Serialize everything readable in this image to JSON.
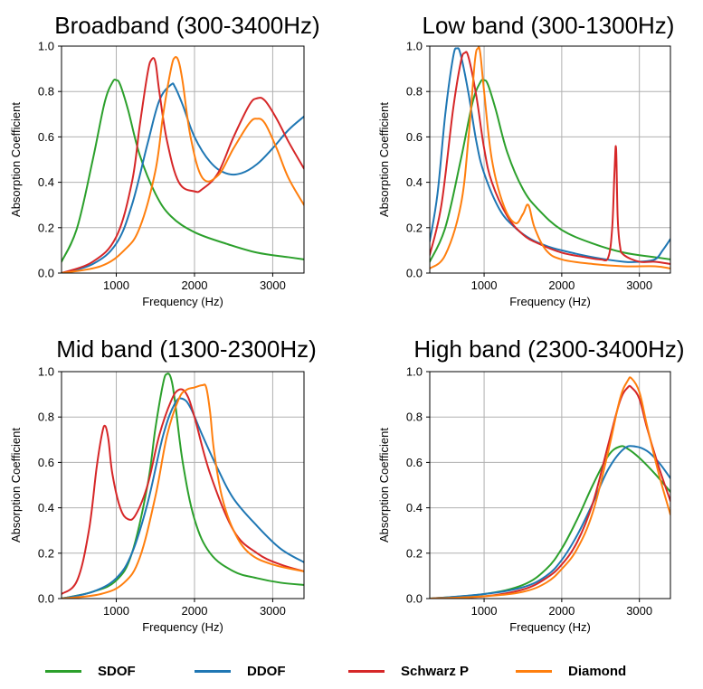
{
  "colors": {
    "SDOF": "#2ca02c",
    "DDOF": "#1f77b4",
    "Schwarz P": "#d62728",
    "Diamond": "#ff7f0e"
  },
  "legend": {
    "entries": [
      {
        "label": "SDOF",
        "color": "#2ca02c"
      },
      {
        "label": "DDOF",
        "color": "#1f77b4"
      },
      {
        "label": "Schwarz P",
        "color": "#d62728"
      },
      {
        "label": "Diamond",
        "color": "#ff7f0e"
      }
    ],
    "placement": "bottom"
  },
  "chart_data": [
    {
      "type": "line",
      "title": "Broadband (300-3400Hz)",
      "xlabel": "Frequency (Hz)",
      "ylabel": "Absorption Coefficient",
      "xlim": [
        300,
        3400
      ],
      "ylim": [
        0,
        1.0
      ],
      "xticks": [
        1000,
        2000,
        3000
      ],
      "xtick_labels": [
        "1000",
        "2000",
        "3000"
      ],
      "yticks": [
        0,
        0.2,
        0.4,
        0.6,
        0.8,
        1.0
      ],
      "ytick_labels": [
        "0.0",
        "0.2",
        "0.4",
        "0.6",
        "0.8",
        "1.0"
      ],
      "grid": true,
      "series": [
        {
          "name": "SDOF",
          "x": [
            300,
            500,
            700,
            850,
            950,
            1000,
            1050,
            1150,
            1300,
            1500,
            1700,
            2000,
            2400,
            2800,
            3200,
            3400
          ],
          "y": [
            0.05,
            0.2,
            0.5,
            0.75,
            0.84,
            0.85,
            0.83,
            0.72,
            0.52,
            0.35,
            0.25,
            0.18,
            0.13,
            0.09,
            0.07,
            0.06
          ]
        },
        {
          "name": "DDOF",
          "x": [
            300,
            700,
            1000,
            1200,
            1400,
            1550,
            1700,
            1750,
            1850,
            2000,
            2200,
            2400,
            2600,
            2800,
            3000,
            3200,
            3400
          ],
          "y": [
            0.0,
            0.04,
            0.13,
            0.3,
            0.57,
            0.76,
            0.83,
            0.82,
            0.74,
            0.6,
            0.49,
            0.44,
            0.44,
            0.48,
            0.55,
            0.63,
            0.69
          ]
        },
        {
          "name": "Schwarz P",
          "x": [
            300,
            700,
            1000,
            1200,
            1300,
            1400,
            1450,
            1500,
            1550,
            1650,
            1800,
            2000,
            2100,
            2300,
            2500,
            2700,
            2800,
            2900,
            3050,
            3200,
            3400
          ],
          "y": [
            0.0,
            0.05,
            0.16,
            0.4,
            0.65,
            0.88,
            0.94,
            0.93,
            0.8,
            0.58,
            0.4,
            0.36,
            0.37,
            0.44,
            0.6,
            0.74,
            0.77,
            0.76,
            0.68,
            0.58,
            0.46
          ]
        },
        {
          "name": "Diamond",
          "x": [
            300,
            800,
            1100,
            1300,
            1500,
            1600,
            1700,
            1750,
            1800,
            1850,
            1950,
            2100,
            2300,
            2500,
            2700,
            2800,
            2900,
            3050,
            3200,
            3400
          ],
          "y": [
            0.0,
            0.03,
            0.1,
            0.2,
            0.45,
            0.7,
            0.9,
            0.95,
            0.93,
            0.84,
            0.6,
            0.42,
            0.43,
            0.55,
            0.66,
            0.68,
            0.66,
            0.55,
            0.42,
            0.3
          ]
        }
      ]
    },
    {
      "type": "line",
      "title": "Low band (300-1300Hz)",
      "xlabel": "Frequency (Hz)",
      "ylabel": "Absorption Coefficient",
      "xlim": [
        300,
        3400
      ],
      "ylim": [
        0,
        1.0
      ],
      "xticks": [
        1000,
        2000,
        3000
      ],
      "xtick_labels": [
        "1000",
        "2000",
        "3000"
      ],
      "yticks": [
        0,
        0.2,
        0.4,
        0.6,
        0.8,
        1.0
      ],
      "ytick_labels": [
        "0.0",
        "0.2",
        "0.4",
        "0.6",
        "0.8",
        "1.0"
      ],
      "grid": true,
      "series": [
        {
          "name": "SDOF",
          "x": [
            300,
            500,
            700,
            850,
            950,
            1000,
            1050,
            1150,
            1300,
            1500,
            1700,
            2000,
            2400,
            2800,
            3200,
            3400
          ],
          "y": [
            0.05,
            0.2,
            0.5,
            0.75,
            0.84,
            0.85,
            0.83,
            0.72,
            0.53,
            0.37,
            0.28,
            0.19,
            0.13,
            0.09,
            0.07,
            0.06
          ]
        },
        {
          "name": "DDOF",
          "x": [
            300,
            400,
            500,
            600,
            650,
            700,
            800,
            900,
            1000,
            1200,
            1400,
            1600,
            1800,
            2000,
            2400,
            2800,
            3000,
            3200,
            3300,
            3400
          ],
          "y": [
            0.14,
            0.35,
            0.7,
            0.95,
            0.99,
            0.96,
            0.79,
            0.58,
            0.44,
            0.28,
            0.2,
            0.15,
            0.12,
            0.1,
            0.07,
            0.05,
            0.05,
            0.06,
            0.1,
            0.15
          ]
        },
        {
          "name": "Schwarz P",
          "x": [
            300,
            450,
            600,
            700,
            750,
            800,
            900,
            1000,
            1100,
            1300,
            1500,
            1700,
            2000,
            2300,
            2500,
            2600,
            2650,
            2680,
            2700,
            2720,
            2750,
            2800,
            3000,
            3200,
            3400
          ],
          "y": [
            0.08,
            0.3,
            0.72,
            0.93,
            0.97,
            0.95,
            0.78,
            0.55,
            0.4,
            0.25,
            0.17,
            0.13,
            0.09,
            0.07,
            0.06,
            0.07,
            0.2,
            0.45,
            0.55,
            0.25,
            0.12,
            0.08,
            0.05,
            0.05,
            0.04
          ]
        },
        {
          "name": "Diamond",
          "x": [
            300,
            500,
            700,
            800,
            880,
            920,
            950,
            1000,
            1100,
            1250,
            1400,
            1500,
            1570,
            1650,
            1800,
            2000,
            2400,
            2800,
            3200,
            3400
          ],
          "y": [
            0.02,
            0.08,
            0.3,
            0.6,
            0.93,
            0.99,
            0.97,
            0.8,
            0.5,
            0.3,
            0.22,
            0.26,
            0.3,
            0.2,
            0.1,
            0.06,
            0.04,
            0.03,
            0.03,
            0.02
          ]
        }
      ]
    },
    {
      "type": "line",
      "title": "Mid band (1300-2300Hz)",
      "xlabel": "Frequency (Hz)",
      "ylabel": "Absorption Coefficient",
      "xlim": [
        300,
        3400
      ],
      "ylim": [
        0,
        1.0
      ],
      "xticks": [
        1000,
        2000,
        3000
      ],
      "xtick_labels": [
        "1000",
        "2000",
        "3000"
      ],
      "yticks": [
        0,
        0.2,
        0.4,
        0.6,
        0.8,
        1.0
      ],
      "ytick_labels": [
        "0.0",
        "0.2",
        "0.4",
        "0.6",
        "0.8",
        "1.0"
      ],
      "grid": true,
      "series": [
        {
          "name": "SDOF",
          "x": [
            300,
            700,
            1000,
            1200,
            1400,
            1500,
            1600,
            1650,
            1700,
            1750,
            1850,
            2000,
            2200,
            2500,
            2800,
            3100,
            3400
          ],
          "y": [
            0.0,
            0.03,
            0.08,
            0.2,
            0.5,
            0.75,
            0.95,
            0.99,
            0.97,
            0.87,
            0.6,
            0.35,
            0.2,
            0.12,
            0.09,
            0.07,
            0.06
          ]
        },
        {
          "name": "DDOF",
          "x": [
            300,
            700,
            1000,
            1200,
            1400,
            1600,
            1750,
            1850,
            1950,
            2100,
            2300,
            2500,
            2800,
            3100,
            3400
          ],
          "y": [
            0.0,
            0.03,
            0.09,
            0.2,
            0.42,
            0.72,
            0.86,
            0.88,
            0.84,
            0.72,
            0.57,
            0.44,
            0.32,
            0.22,
            0.16
          ]
        },
        {
          "name": "Schwarz P",
          "x": [
            300,
            500,
            650,
            750,
            820,
            860,
            900,
            950,
            1050,
            1150,
            1250,
            1400,
            1550,
            1700,
            1800,
            1900,
            2000,
            2200,
            2500,
            2800,
            3100,
            3400
          ],
          "y": [
            0.02,
            0.08,
            0.3,
            0.58,
            0.73,
            0.76,
            0.7,
            0.55,
            0.4,
            0.35,
            0.37,
            0.5,
            0.72,
            0.87,
            0.92,
            0.9,
            0.8,
            0.55,
            0.3,
            0.2,
            0.15,
            0.12
          ]
        },
        {
          "name": "Diamond",
          "x": [
            300,
            800,
            1100,
            1300,
            1500,
            1650,
            1800,
            1900,
            2000,
            2100,
            2150,
            2200,
            2250,
            2350,
            2500,
            2700,
            3000,
            3400
          ],
          "y": [
            0.0,
            0.02,
            0.07,
            0.18,
            0.45,
            0.72,
            0.88,
            0.92,
            0.93,
            0.94,
            0.93,
            0.82,
            0.65,
            0.45,
            0.3,
            0.2,
            0.15,
            0.12
          ]
        }
      ]
    },
    {
      "type": "line",
      "title": "High band (2300-3400Hz)",
      "xlabel": "Frequency (Hz)",
      "ylabel": "Absorption Coefficient",
      "xlim": [
        300,
        3400
      ],
      "ylim": [
        0,
        1.0
      ],
      "xticks": [
        1000,
        2000,
        3000
      ],
      "xtick_labels": [
        "1000",
        "2000",
        "3000"
      ],
      "yticks": [
        0,
        0.2,
        0.4,
        0.6,
        0.8,
        1.0
      ],
      "ytick_labels": [
        "0.0",
        "0.2",
        "0.4",
        "0.6",
        "0.8",
        "1.0"
      ],
      "grid": true,
      "series": [
        {
          "name": "SDOF",
          "x": [
            300,
            1000,
            1500,
            1800,
            2000,
            2200,
            2400,
            2600,
            2750,
            2850,
            3000,
            3200,
            3400
          ],
          "y": [
            0.0,
            0.02,
            0.06,
            0.13,
            0.22,
            0.35,
            0.5,
            0.63,
            0.67,
            0.66,
            0.62,
            0.55,
            0.47
          ]
        },
        {
          "name": "DDOF",
          "x": [
            300,
            1000,
            1500,
            1800,
            2000,
            2200,
            2400,
            2600,
            2800,
            2950,
            3100,
            3250,
            3400
          ],
          "y": [
            0.0,
            0.02,
            0.05,
            0.1,
            0.17,
            0.28,
            0.42,
            0.57,
            0.66,
            0.67,
            0.65,
            0.6,
            0.53
          ]
        },
        {
          "name": "Schwarz P",
          "x": [
            300,
            1000,
            1500,
            1800,
            2000,
            2200,
            2400,
            2600,
            2750,
            2850,
            2900,
            3000,
            3100,
            3250,
            3400
          ],
          "y": [
            0.0,
            0.01,
            0.04,
            0.09,
            0.15,
            0.25,
            0.42,
            0.68,
            0.87,
            0.93,
            0.93,
            0.88,
            0.75,
            0.58,
            0.43
          ]
        },
        {
          "name": "Diamond",
          "x": [
            300,
            1000,
            1500,
            1800,
            2000,
            2200,
            2400,
            2600,
            2750,
            2850,
            2900,
            3000,
            3100,
            3250,
            3400
          ],
          "y": [
            0.0,
            0.01,
            0.03,
            0.07,
            0.13,
            0.22,
            0.38,
            0.65,
            0.88,
            0.96,
            0.97,
            0.91,
            0.76,
            0.55,
            0.37
          ]
        }
      ]
    }
  ]
}
